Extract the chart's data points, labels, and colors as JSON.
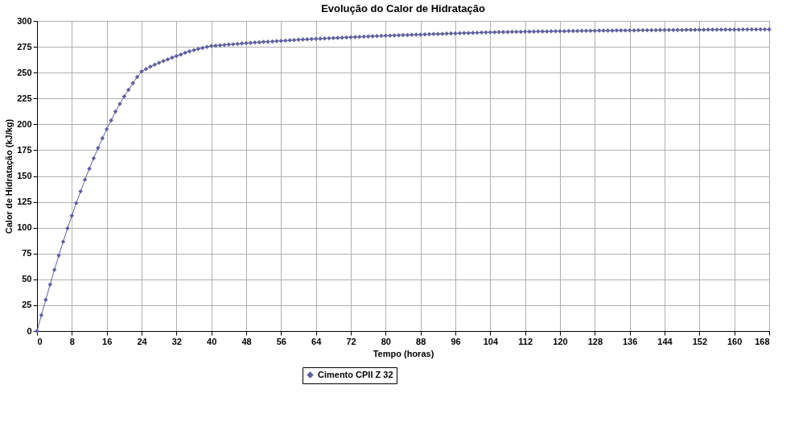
{
  "chart_data": {
    "type": "line",
    "title": "Evolução do Calor de Hidratação",
    "xlabel": "Tempo (horas)",
    "ylabel": "Calor de Hidratação (kJ/kg)",
    "x": [
      0,
      1,
      2,
      3,
      4,
      5,
      6,
      7,
      8,
      9,
      10,
      11,
      12,
      13,
      14,
      15,
      16,
      17,
      18,
      19,
      20,
      21,
      22,
      23,
      24,
      25,
      26,
      27,
      28,
      29,
      30,
      31,
      32,
      33,
      34,
      35,
      36,
      37,
      38,
      39,
      40,
      41,
      42,
      43,
      44,
      45,
      46,
      47,
      48,
      49,
      50,
      51,
      52,
      53,
      54,
      55,
      56,
      57,
      58,
      59,
      60,
      61,
      62,
      63,
      64,
      65,
      66,
      67,
      68,
      69,
      70,
      71,
      72,
      73,
      74,
      75,
      76,
      77,
      78,
      79,
      80,
      81,
      82,
      83,
      84,
      85,
      86,
      87,
      88,
      89,
      90,
      91,
      92,
      93,
      94,
      95,
      96,
      97,
      98,
      99,
      100,
      101,
      102,
      103,
      104,
      105,
      106,
      107,
      108,
      109,
      110,
      111,
      112,
      113,
      114,
      115,
      116,
      117,
      118,
      119,
      120,
      121,
      122,
      123,
      124,
      125,
      126,
      127,
      128,
      129,
      130,
      131,
      132,
      133,
      134,
      135,
      136,
      137,
      138,
      139,
      140,
      141,
      142,
      143,
      144,
      145,
      146,
      147,
      148,
      149,
      150,
      151,
      152,
      153,
      154,
      155,
      156,
      157,
      158,
      159,
      160,
      161,
      162,
      163,
      164,
      165,
      166,
      167,
      168
    ],
    "series": [
      {
        "name": "Cimento CPII Z 32",
        "color": "#5f5f9f",
        "values": [
          0,
          15.4,
          30.2,
          45.0,
          59.2,
          73.0,
          86.4,
          99.4,
          111.6,
          123.8,
          135.1,
          146.4,
          157.0,
          167.1,
          177.0,
          186.4,
          195.3,
          203.8,
          212.3,
          219.8,
          226.9,
          233.4,
          239.8,
          245.9,
          251.1,
          253.4,
          255.8,
          257.7,
          259.5,
          261.2,
          262.8,
          264.5,
          266.1,
          267.5,
          269.2,
          270.6,
          271.8,
          273.0,
          273.9,
          274.8,
          275.8,
          276.1,
          276.5,
          276.8,
          277.2,
          277.5,
          277.8,
          278.2,
          278.5,
          278.8,
          279.1,
          279.4,
          279.7,
          279.9,
          280.2,
          280.5,
          280.8,
          281.0,
          281.3,
          281.5,
          281.8,
          282.0,
          282.2,
          282.5,
          282.7,
          282.9,
          283.1,
          283.3,
          283.5,
          283.7,
          283.9,
          284.1,
          284.3,
          284.5,
          284.7,
          284.8,
          285.0,
          285.2,
          285.4,
          285.5,
          285.7,
          285.8,
          286.0,
          286.1,
          286.3,
          286.4,
          286.5,
          286.7,
          286.8,
          287.0,
          287.1,
          287.3,
          287.4,
          287.6,
          287.7,
          287.9,
          288.0,
          288.1,
          288.3,
          288.4,
          288.5,
          288.6,
          288.8,
          288.9,
          289.0,
          289.1,
          289.2,
          289.2,
          289.3,
          289.4,
          289.5,
          289.5,
          289.6,
          289.7,
          289.7,
          289.8,
          289.9,
          289.9,
          290.0,
          290.0,
          290.1,
          290.1,
          290.2,
          290.3,
          290.3,
          290.4,
          290.4,
          290.5,
          290.5,
          290.6,
          290.6,
          290.7,
          290.7,
          290.8,
          290.8,
          290.9,
          290.9,
          290.9,
          291.0,
          291.0,
          291.1,
          291.1,
          291.1,
          291.2,
          291.2,
          291.2,
          291.3,
          291.3,
          291.3,
          291.4,
          291.4,
          291.5,
          291.5,
          291.5,
          291.6,
          291.6,
          291.6,
          291.6,
          291.7,
          291.7,
          291.7,
          291.7,
          291.8,
          291.8,
          291.8,
          291.8,
          291.8,
          291.9,
          291.9
        ]
      }
    ],
    "xlim": [
      0,
      168
    ],
    "xticks": [
      0,
      8,
      16,
      24,
      32,
      40,
      48,
      56,
      64,
      72,
      80,
      88,
      96,
      104,
      112,
      120,
      128,
      136,
      144,
      152,
      160,
      168
    ],
    "ylim": [
      0,
      300
    ],
    "yticks": [
      0,
      25,
      50,
      75,
      100,
      125,
      150,
      175,
      200,
      225,
      250,
      275,
      300
    ],
    "grid": true,
    "legend": "bottom",
    "marker": "diamond",
    "line_style": "solid"
  }
}
